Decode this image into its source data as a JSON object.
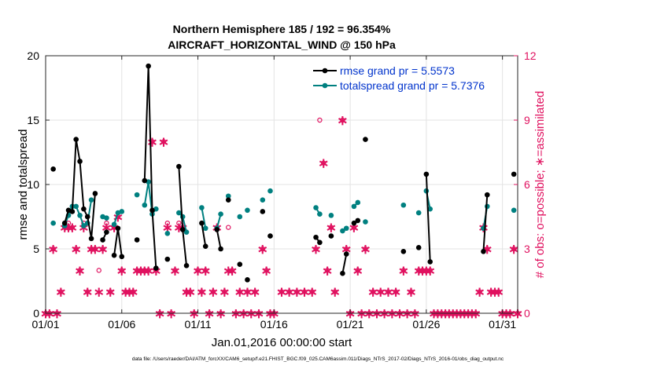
{
  "chart_data": {
    "type": "line",
    "title_line1": "Northern Hemisphere 185 / 192 = 96.354%",
    "title_line2": "AIRCRAFT_HORIZONTAL_WIND @ 150 hPa",
    "xlabel": "Jan.01,2016 00:00:00 start",
    "ylabel_left": "rmse and totalspread",
    "ylabel_right": "# of obs: o=possible; ∗=assimilated",
    "footer": "data file: /Users/raeder/DAI/ATM_forcXX/CAM6_setup/f.e21.FHIST_BGC.f09_025.CAM6assim.011/Diags_NTrS_2017-02/Diags_NTrS_2016-01/obs_diag_output.nc",
    "xlim": [
      1,
      32
    ],
    "ylim_left": [
      0,
      20
    ],
    "ylim_right": [
      0,
      12
    ],
    "x_ticks": [
      1,
      6,
      11,
      16,
      21,
      26,
      31
    ],
    "x_tick_labels": [
      "01/01",
      "01/06",
      "01/11",
      "01/16",
      "01/21",
      "01/26",
      "01/31"
    ],
    "y_left_ticks": [
      "0",
      "5",
      "10",
      "15",
      "20"
    ],
    "y_right_ticks": [
      "0",
      "3",
      "6",
      "9",
      "12"
    ],
    "colors": {
      "rmse": "#000000",
      "spread": "#008080",
      "obs": "#e0115f",
      "legend_text": "#0033cc",
      "grid": "#e3e3e3"
    },
    "series": [
      {
        "name": "rmse grand pr = 5.5573",
        "color": "#000000",
        "segments": [
          [
            [
              1.5,
              11.2
            ]
          ],
          [
            [
              2.25,
              7.0
            ],
            [
              2.5,
              8.0
            ],
            [
              2.75,
              7.9
            ],
            [
              3.0,
              13.5
            ],
            [
              3.25,
              11.8
            ],
            [
              3.5,
              8.1
            ],
            [
              3.75,
              7.5
            ],
            [
              4.0,
              5.8
            ],
            [
              4.25,
              9.3
            ]
          ],
          [
            [
              4.75,
              5.7
            ],
            [
              5.0,
              6.3
            ]
          ],
          [
            [
              5.5,
              4.5
            ],
            [
              5.75,
              6.6
            ],
            [
              6.0,
              4.4
            ]
          ],
          [
            [
              7.0,
              5.7
            ]
          ],
          [
            [
              7.5,
              10.3
            ],
            [
              7.75,
              19.2
            ],
            [
              8.0,
              8.0
            ],
            [
              8.25,
              3.5
            ]
          ],
          [
            [
              9.0,
              4.2
            ]
          ],
          [
            [
              9.75,
              11.4
            ],
            [
              10.0,
              6.5
            ],
            [
              10.25,
              3.7
            ]
          ],
          [
            [
              11.25,
              7.0
            ],
            [
              11.5,
              5.2
            ]
          ],
          [
            [
              12.25,
              6.5
            ],
            [
              12.5,
              5.0
            ]
          ],
          [
            [
              13.0,
              8.8
            ]
          ],
          [
            [
              13.75,
              3.8
            ]
          ],
          [
            [
              14.25,
              2.6
            ]
          ],
          [
            [
              15.25,
              7.9
            ]
          ],
          [
            [
              15.75,
              6.0
            ]
          ],
          [
            [
              18.75,
              5.9
            ],
            [
              19.0,
              5.5
            ]
          ],
          [
            [
              19.75,
              6.0
            ]
          ],
          [
            [
              20.5,
              3.1
            ],
            [
              20.75,
              4.6
            ]
          ],
          [
            [
              21.25,
              7.0
            ],
            [
              21.5,
              7.2
            ]
          ],
          [
            [
              22.0,
              13.5
            ]
          ],
          [
            [
              24.5,
              4.8
            ]
          ],
          [
            [
              25.5,
              5.1
            ]
          ],
          [
            [
              26.0,
              10.8
            ],
            [
              26.25,
              4.0
            ]
          ],
          [
            [
              29.75,
              4.8
            ],
            [
              30.0,
              9.2
            ]
          ],
          [
            [
              31.75,
              10.8
            ]
          ]
        ]
      },
      {
        "name": "totalspread grand pr = 5.7376",
        "color": "#008080",
        "segments": [
          [
            [
              1.5,
              7.0
            ]
          ],
          [
            [
              2.25,
              6.8
            ],
            [
              2.5,
              7.6
            ],
            [
              2.75,
              8.3
            ],
            [
              3.0,
              8.3
            ],
            [
              3.25,
              7.6
            ],
            [
              3.5,
              6.8
            ],
            [
              3.75,
              7.0
            ],
            [
              4.0,
              8.8
            ]
          ],
          [
            [
              4.75,
              7.5
            ],
            [
              5.0,
              7.4
            ]
          ],
          [
            [
              5.5,
              6.9
            ],
            [
              5.75,
              7.8
            ],
            [
              6.0,
              7.9
            ]
          ],
          [
            [
              7.0,
              9.2
            ]
          ],
          [
            [
              7.5,
              8.4
            ],
            [
              7.75,
              10.2
            ],
            [
              8.0,
              7.7
            ],
            [
              8.25,
              8.1
            ]
          ],
          [
            [
              9.0,
              6.2
            ]
          ],
          [
            [
              9.75,
              7.8
            ],
            [
              10.0,
              7.5
            ],
            [
              10.25,
              6.3
            ]
          ],
          [
            [
              11.25,
              8.2
            ],
            [
              11.5,
              6.6
            ]
          ],
          [
            [
              12.25,
              6.6
            ],
            [
              12.5,
              7.7
            ]
          ],
          [
            [
              13.0,
              9.1
            ]
          ],
          [
            [
              13.75,
              7.5
            ]
          ],
          [
            [
              14.25,
              8.0
            ]
          ],
          [
            [
              15.25,
              8.8
            ]
          ],
          [
            [
              15.75,
              9.5
            ]
          ],
          [
            [
              18.75,
              8.2
            ],
            [
              19.0,
              7.7
            ]
          ],
          [
            [
              19.75,
              7.6
            ]
          ],
          [
            [
              20.5,
              6.4
            ],
            [
              20.75,
              6.6
            ]
          ],
          [
            [
              21.25,
              8.3
            ],
            [
              21.5,
              8.6
            ]
          ],
          [
            [
              22.0,
              7.1
            ]
          ],
          [
            [
              24.5,
              8.4
            ]
          ],
          [
            [
              25.5,
              7.8
            ]
          ],
          [
            [
              26.0,
              9.5
            ],
            [
              26.25,
              8.1
            ]
          ],
          [
            [
              29.75,
              6.6
            ],
            [
              30.0,
              8.3
            ]
          ],
          [
            [
              31.75,
              8.0
            ]
          ]
        ]
      }
    ],
    "obs_possible": [
      [
        1.0,
        0
      ],
      [
        1.25,
        0
      ],
      [
        1.5,
        3.0
      ],
      [
        1.75,
        0
      ],
      [
        2.0,
        1.0
      ],
      [
        2.25,
        4.0
      ],
      [
        2.5,
        4.2
      ],
      [
        2.75,
        4.0
      ],
      [
        3.0,
        3.0
      ],
      [
        3.25,
        2.0
      ],
      [
        3.5,
        4.2
      ],
      [
        3.75,
        1.0
      ],
      [
        4.0,
        3.0
      ],
      [
        4.25,
        3.0
      ],
      [
        4.5,
        2.0
      ],
      [
        4.75,
        3.0
      ],
      [
        5.0,
        4.2
      ],
      [
        5.25,
        1.0
      ],
      [
        5.5,
        4.0
      ],
      [
        5.75,
        4.5
      ],
      [
        6.0,
        2.0
      ],
      [
        6.25,
        1.0
      ],
      [
        6.5,
        1.0
      ],
      [
        6.75,
        1.0
      ],
      [
        7.0,
        2.0
      ],
      [
        7.25,
        2.0
      ],
      [
        7.5,
        2.0
      ],
      [
        7.75,
        2.0
      ],
      [
        8.0,
        8.0
      ],
      [
        8.25,
        2.0
      ],
      [
        8.5,
        0
      ],
      [
        8.75,
        8.0
      ],
      [
        9.0,
        4.2
      ],
      [
        9.25,
        0
      ],
      [
        9.5,
        2.0
      ],
      [
        9.75,
        4.2
      ],
      [
        10.0,
        4.0
      ],
      [
        10.25,
        1.0
      ],
      [
        10.5,
        1.0
      ],
      [
        10.75,
        0
      ],
      [
        11.0,
        2.0
      ],
      [
        11.25,
        1.0
      ],
      [
        11.5,
        2.0
      ],
      [
        11.75,
        0
      ],
      [
        12.0,
        1.0
      ],
      [
        12.25,
        4.0
      ],
      [
        12.5,
        0
      ],
      [
        12.75,
        1.0
      ],
      [
        13.0,
        4.0
      ],
      [
        13.25,
        2.0
      ],
      [
        13.5,
        0
      ],
      [
        13.75,
        1.0
      ],
      [
        14.0,
        0
      ],
      [
        14.25,
        1.0
      ],
      [
        14.5,
        0
      ],
      [
        14.75,
        1.0
      ],
      [
        15.0,
        0
      ],
      [
        15.25,
        3.0
      ],
      [
        15.5,
        2.0
      ],
      [
        15.75,
        0
      ],
      [
        16.0,
        0
      ],
      [
        16.5,
        1.0
      ],
      [
        17.0,
        1.0
      ],
      [
        17.5,
        1.0
      ],
      [
        18.0,
        1.0
      ],
      [
        18.5,
        1.0
      ],
      [
        18.75,
        3.0
      ],
      [
        19.0,
        9.0
      ],
      [
        19.25,
        7.0
      ],
      [
        19.5,
        2.0
      ],
      [
        19.75,
        4.0
      ],
      [
        20.0,
        1.0
      ],
      [
        20.5,
        9.0
      ],
      [
        20.75,
        3.0
      ],
      [
        21.0,
        0
      ],
      [
        21.25,
        4.0
      ],
      [
        21.5,
        2.0
      ],
      [
        21.75,
        0
      ],
      [
        22.0,
        3.0
      ],
      [
        22.25,
        0
      ],
      [
        22.5,
        1.0
      ],
      [
        22.75,
        0
      ],
      [
        23.0,
        1.0
      ],
      [
        23.25,
        0
      ],
      [
        23.5,
        1.0
      ],
      [
        23.75,
        0
      ],
      [
        24.0,
        1.0
      ],
      [
        24.25,
        0
      ],
      [
        24.5,
        2.0
      ],
      [
        24.75,
        0
      ],
      [
        25.0,
        1.0
      ],
      [
        25.25,
        0
      ],
      [
        25.5,
        2.0
      ],
      [
        25.75,
        2.0
      ],
      [
        26.0,
        2.0
      ],
      [
        26.25,
        2.0
      ],
      [
        26.5,
        0
      ],
      [
        26.75,
        0
      ],
      [
        27.0,
        0
      ],
      [
        27.25,
        0
      ],
      [
        27.5,
        0
      ],
      [
        27.75,
        0
      ],
      [
        28.0,
        0
      ],
      [
        28.25,
        0
      ],
      [
        28.5,
        0
      ],
      [
        28.75,
        0
      ],
      [
        29.0,
        0
      ],
      [
        29.25,
        0
      ],
      [
        29.5,
        1.0
      ],
      [
        29.75,
        4.0
      ],
      [
        30.0,
        3.0
      ],
      [
        30.25,
        1.0
      ],
      [
        30.5,
        1.0
      ],
      [
        30.75,
        1.0
      ],
      [
        31.0,
        0
      ],
      [
        31.25,
        0
      ],
      [
        31.5,
        0
      ],
      [
        31.75,
        3.0
      ],
      [
        32.0,
        0
      ]
    ],
    "obs_assimilated": [
      [
        1.0,
        0
      ],
      [
        1.25,
        0
      ],
      [
        1.5,
        3.0
      ],
      [
        1.75,
        0
      ],
      [
        2.0,
        1.0
      ],
      [
        2.25,
        4.0
      ],
      [
        2.5,
        4.0
      ],
      [
        2.75,
        4.0
      ],
      [
        3.0,
        3.0
      ],
      [
        3.25,
        2.0
      ],
      [
        3.5,
        4.0
      ],
      [
        3.75,
        1.0
      ],
      [
        4.0,
        3.0
      ],
      [
        4.25,
        3.0
      ],
      [
        4.5,
        1.0
      ],
      [
        4.75,
        3.0
      ],
      [
        5.0,
        4.0
      ],
      [
        5.25,
        1.0
      ],
      [
        5.5,
        4.0
      ],
      [
        5.75,
        4.5
      ],
      [
        6.0,
        2.0
      ],
      [
        6.25,
        1.0
      ],
      [
        6.5,
        1.0
      ],
      [
        6.75,
        1.0
      ],
      [
        7.0,
        2.0
      ],
      [
        7.25,
        2.0
      ],
      [
        7.5,
        2.0
      ],
      [
        7.75,
        2.0
      ],
      [
        8.0,
        8.0
      ],
      [
        8.25,
        2.0
      ],
      [
        8.5,
        0
      ],
      [
        8.75,
        8.0
      ],
      [
        9.0,
        4.0
      ],
      [
        9.25,
        0
      ],
      [
        9.5,
        2.0
      ],
      [
        9.75,
        4.0
      ],
      [
        10.0,
        4.0
      ],
      [
        10.25,
        1.0
      ],
      [
        10.5,
        1.0
      ],
      [
        10.75,
        0
      ],
      [
        11.0,
        2.0
      ],
      [
        11.25,
        1.0
      ],
      [
        11.5,
        2.0
      ],
      [
        11.75,
        0
      ],
      [
        12.0,
        1.0
      ],
      [
        12.25,
        4.0
      ],
      [
        12.5,
        0
      ],
      [
        12.75,
        1.0
      ],
      [
        13.0,
        2.0
      ],
      [
        13.25,
        2.0
      ],
      [
        13.5,
        0
      ],
      [
        13.75,
        1.0
      ],
      [
        14.0,
        0
      ],
      [
        14.25,
        1.0
      ],
      [
        14.5,
        0
      ],
      [
        14.75,
        1.0
      ],
      [
        15.0,
        0
      ],
      [
        15.25,
        3.0
      ],
      [
        15.5,
        2.0
      ],
      [
        15.75,
        0
      ],
      [
        16.0,
        0
      ],
      [
        16.5,
        1.0
      ],
      [
        17.0,
        1.0
      ],
      [
        17.5,
        1.0
      ],
      [
        18.0,
        1.0
      ],
      [
        18.5,
        1.0
      ],
      [
        18.75,
        3.0
      ],
      [
        19.25,
        7.0
      ],
      [
        19.5,
        2.0
      ],
      [
        19.75,
        4.0
      ],
      [
        20.0,
        1.0
      ],
      [
        20.5,
        9.0
      ],
      [
        20.75,
        3.0
      ],
      [
        21.0,
        0
      ],
      [
        21.25,
        4.0
      ],
      [
        21.5,
        2.0
      ],
      [
        21.75,
        0
      ],
      [
        22.0,
        3.0
      ],
      [
        22.25,
        0
      ],
      [
        22.5,
        1.0
      ],
      [
        22.75,
        0
      ],
      [
        23.0,
        1.0
      ],
      [
        23.25,
        0
      ],
      [
        23.5,
        1.0
      ],
      [
        23.75,
        0
      ],
      [
        24.0,
        1.0
      ],
      [
        24.25,
        0
      ],
      [
        24.5,
        2.0
      ],
      [
        24.75,
        0
      ],
      [
        25.0,
        1.0
      ],
      [
        25.25,
        0
      ],
      [
        25.5,
        2.0
      ],
      [
        25.75,
        2.0
      ],
      [
        26.0,
        2.0
      ],
      [
        26.25,
        2.0
      ],
      [
        26.5,
        0
      ],
      [
        26.75,
        0
      ],
      [
        27.0,
        0
      ],
      [
        27.25,
        0
      ],
      [
        27.5,
        0
      ],
      [
        27.75,
        0
      ],
      [
        28.0,
        0
      ],
      [
        28.25,
        0
      ],
      [
        28.5,
        0
      ],
      [
        28.75,
        0
      ],
      [
        29.0,
        0
      ],
      [
        29.25,
        0
      ],
      [
        29.5,
        1.0
      ],
      [
        29.75,
        4.0
      ],
      [
        30.0,
        3.0
      ],
      [
        30.25,
        1.0
      ],
      [
        30.5,
        1.0
      ],
      [
        30.75,
        1.0
      ],
      [
        31.0,
        0
      ],
      [
        31.25,
        0
      ],
      [
        31.5,
        0
      ],
      [
        31.75,
        3.0
      ],
      [
        32.0,
        0
      ]
    ]
  }
}
